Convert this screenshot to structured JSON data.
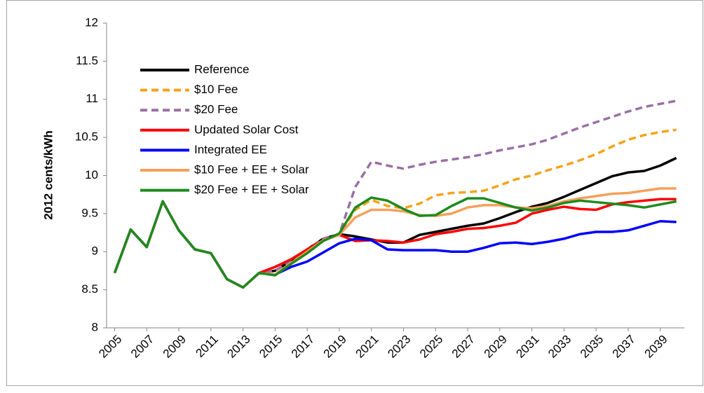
{
  "chart_data": {
    "type": "line",
    "y_label": "2012 cents/kWh",
    "x": [
      2005,
      2006,
      2007,
      2008,
      2009,
      2010,
      2011,
      2012,
      2013,
      2014,
      2015,
      2016,
      2017,
      2018,
      2019,
      2020,
      2021,
      2022,
      2023,
      2024,
      2025,
      2026,
      2027,
      2028,
      2029,
      2030,
      2031,
      2032,
      2033,
      2034,
      2035,
      2036,
      2037,
      2038,
      2039,
      2040
    ],
    "xlim": [
      2004.5,
      2040.5
    ],
    "xticks": [
      2005,
      2007,
      2009,
      2011,
      2013,
      2015,
      2017,
      2019,
      2021,
      2023,
      2025,
      2027,
      2029,
      2031,
      2033,
      2035,
      2037,
      2039
    ],
    "ylim": [
      8,
      12
    ],
    "yticks": [
      8,
      8.5,
      9,
      9.5,
      10,
      10.5,
      11,
      11.5,
      12
    ],
    "grid": false,
    "legend": "upper left",
    "series": [
      {
        "name": "Reference",
        "color": "#000000",
        "dashed": false,
        "values": [
          8.72,
          9.29,
          9.06,
          9.66,
          9.28,
          9.03,
          8.98,
          8.64,
          8.53,
          8.72,
          8.75,
          8.88,
          9.03,
          9.17,
          9.23,
          9.2,
          9.16,
          9.12,
          9.12,
          9.22,
          9.26,
          9.3,
          9.34,
          9.37,
          9.44,
          9.52,
          9.59,
          9.64,
          9.72,
          9.81,
          9.9,
          9.99,
          10.04,
          10.06,
          10.13,
          10.23
        ]
      },
      {
        "name": "$10 Fee",
        "color": "#f5a21b",
        "dashed": true,
        "values": [
          8.72,
          9.29,
          9.06,
          9.66,
          9.28,
          9.03,
          8.98,
          8.64,
          8.53,
          8.72,
          8.75,
          8.88,
          9.03,
          9.17,
          9.23,
          9.55,
          9.68,
          9.6,
          9.57,
          9.63,
          9.74,
          9.77,
          9.78,
          9.8,
          9.87,
          9.95,
          10.0,
          10.07,
          10.13,
          10.2,
          10.28,
          10.38,
          10.47,
          10.53,
          10.57,
          10.6
        ]
      },
      {
        "name": "$20 Fee",
        "color": "#9a70a4",
        "dashed": true,
        "values": [
          8.72,
          9.29,
          9.06,
          9.66,
          9.28,
          9.03,
          8.98,
          8.64,
          8.53,
          8.72,
          8.75,
          8.88,
          9.03,
          9.17,
          9.23,
          9.85,
          10.18,
          10.13,
          10.09,
          10.14,
          10.18,
          10.21,
          10.24,
          10.28,
          10.33,
          10.37,
          10.41,
          10.47,
          10.55,
          10.63,
          10.7,
          10.77,
          10.84,
          10.9,
          10.94,
          10.98
        ]
      },
      {
        "name": "Updated Solar Cost",
        "color": "#ff0000",
        "dashed": false,
        "values": [
          8.72,
          9.29,
          9.06,
          9.66,
          9.28,
          9.03,
          8.98,
          8.64,
          8.53,
          8.72,
          8.8,
          8.9,
          9.03,
          9.15,
          9.22,
          9.14,
          9.15,
          9.14,
          9.12,
          9.16,
          9.23,
          9.26,
          9.3,
          9.31,
          9.34,
          9.38,
          9.5,
          9.55,
          9.59,
          9.56,
          9.55,
          9.62,
          9.65,
          9.67,
          9.69,
          9.69
        ]
      },
      {
        "name": "Integrated EE",
        "color": "#0000ff",
        "dashed": false,
        "values": [
          8.72,
          9.29,
          9.06,
          9.66,
          9.28,
          9.03,
          8.98,
          8.64,
          8.53,
          8.72,
          8.7,
          8.8,
          8.87,
          8.99,
          9.11,
          9.17,
          9.15,
          9.03,
          9.02,
          9.02,
          9.02,
          9.0,
          9.0,
          9.05,
          9.11,
          9.12,
          9.1,
          9.13,
          9.17,
          9.23,
          9.26,
          9.26,
          9.28,
          9.34,
          9.4,
          9.39
        ]
      },
      {
        "name": "$10 Fee + EE + Solar",
        "color": "#f5a05a",
        "dashed": false,
        "values": [
          8.72,
          9.29,
          9.06,
          9.66,
          9.28,
          9.03,
          8.98,
          8.64,
          8.53,
          8.72,
          8.7,
          8.85,
          9.0,
          9.15,
          9.22,
          9.45,
          9.55,
          9.55,
          9.53,
          9.48,
          9.47,
          9.5,
          9.58,
          9.61,
          9.61,
          9.58,
          9.57,
          9.6,
          9.66,
          9.7,
          9.73,
          9.76,
          9.77,
          9.8,
          9.83,
          9.83
        ]
      },
      {
        "name": "$20 Fee + EE + Solar",
        "color": "#1e8a1e",
        "dashed": false,
        "values": [
          8.72,
          9.29,
          9.06,
          9.66,
          9.28,
          9.03,
          8.98,
          8.64,
          8.53,
          8.72,
          8.69,
          8.84,
          8.98,
          9.14,
          9.24,
          9.58,
          9.71,
          9.67,
          9.56,
          9.47,
          9.48,
          9.6,
          9.7,
          9.7,
          9.64,
          9.58,
          9.54,
          9.58,
          9.64,
          9.67,
          9.65,
          9.63,
          9.61,
          9.58,
          9.62,
          9.66
        ]
      }
    ]
  }
}
